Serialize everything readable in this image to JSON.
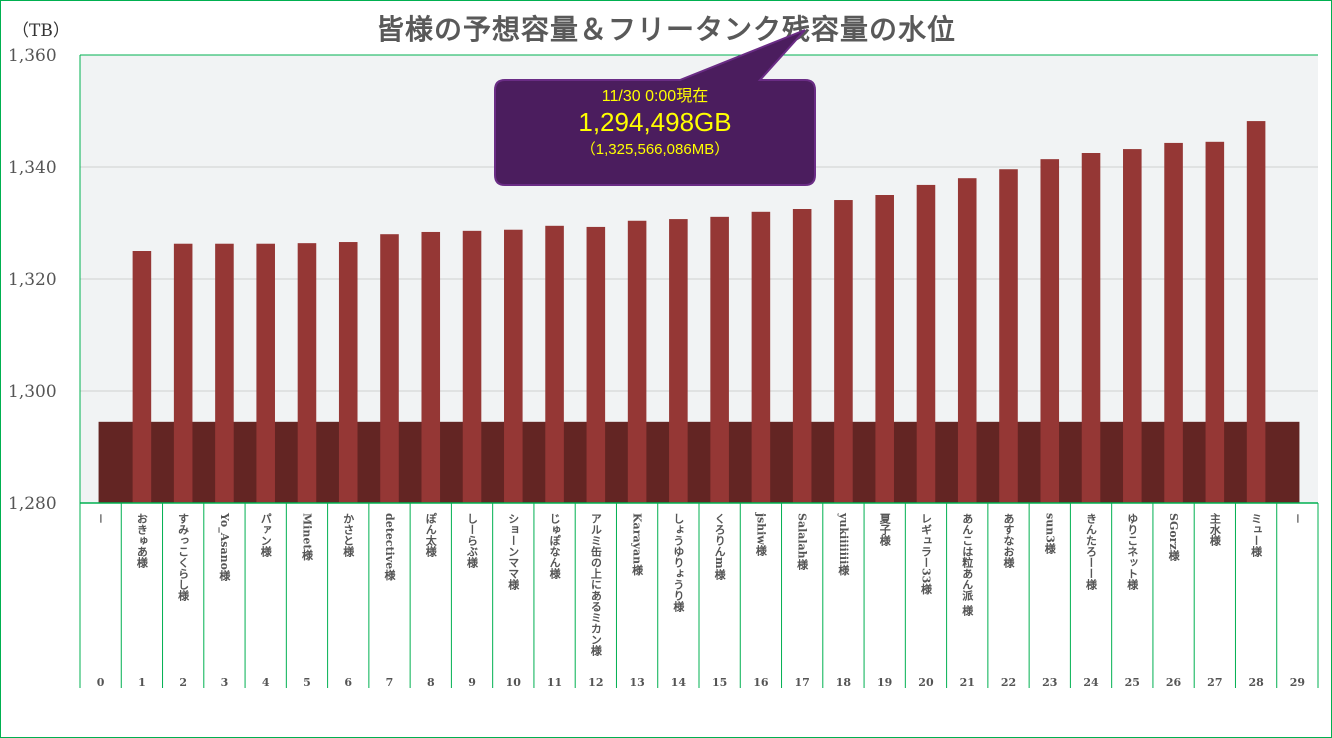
{
  "chart_data": {
    "type": "bar",
    "title": "皆様の予想容量＆フリータンク残容量の水位",
    "ylabel": "（TB）",
    "ylim": [
      1280,
      1360
    ],
    "yticks": [
      "1,280",
      "1,300",
      "1,320",
      "1,340",
      "1,360"
    ],
    "ytick_values": [
      1280,
      1300,
      1320,
      1340,
      1360
    ],
    "grid": true,
    "categories": [
      "－",
      "おきゅあ様",
      "すみっこくらし様",
      "Yo_Asano様",
      "パァン様",
      "Minet様",
      "かさと様",
      "detective様",
      "ぽん太様",
      "しーらぶ様",
      "ショーンママ様",
      "じゅぽなん様",
      "アルミ缶の上にあるミカン様",
      "Karayan様",
      "しょうゆりょうり様",
      "くろりんm様",
      "jshiw様",
      "Salalah様",
      "yukiiiiiii様",
      "夏子様",
      "レギュラー33様",
      "あんこは粒あん派 様",
      "あすなお様",
      "sun3様",
      "きんたろーー様",
      "ゆりこネット様",
      "SGorz様",
      "主水様",
      "ミュー様",
      "－"
    ],
    "indices": [
      "0",
      "1",
      "2",
      "3",
      "4",
      "5",
      "6",
      "7",
      "8",
      "9",
      "10",
      "11",
      "12",
      "13",
      "14",
      "15",
      "16",
      "17",
      "18",
      "19",
      "20",
      "21",
      "22",
      "23",
      "24",
      "25",
      "26",
      "27",
      "28",
      "29"
    ],
    "series": [
      {
        "name": "予想容量",
        "color": "#953735",
        "values": [
          null,
          1325.0,
          1326.3,
          1326.3,
          1326.3,
          1326.4,
          1326.6,
          1328.0,
          1328.4,
          1328.6,
          1328.8,
          1329.5,
          1329.3,
          1330.4,
          1330.7,
          1331.1,
          1332.0,
          1332.5,
          1334.1,
          1335.0,
          1336.8,
          1338.0,
          1339.6,
          1341.4,
          1342.5,
          1343.2,
          1344.3,
          1344.5,
          1348.2,
          null
        ]
      },
      {
        "name": "フリータンク残容量",
        "color": "#632523",
        "value": 1294.498
      }
    ],
    "annotation": {
      "line1": "11/30 0:00現在",
      "line2": "1,294,498GB",
      "line3": "（1,325,566,086MB）",
      "bg_color": "#4b1d5e",
      "text_color": "#ffff00"
    }
  }
}
